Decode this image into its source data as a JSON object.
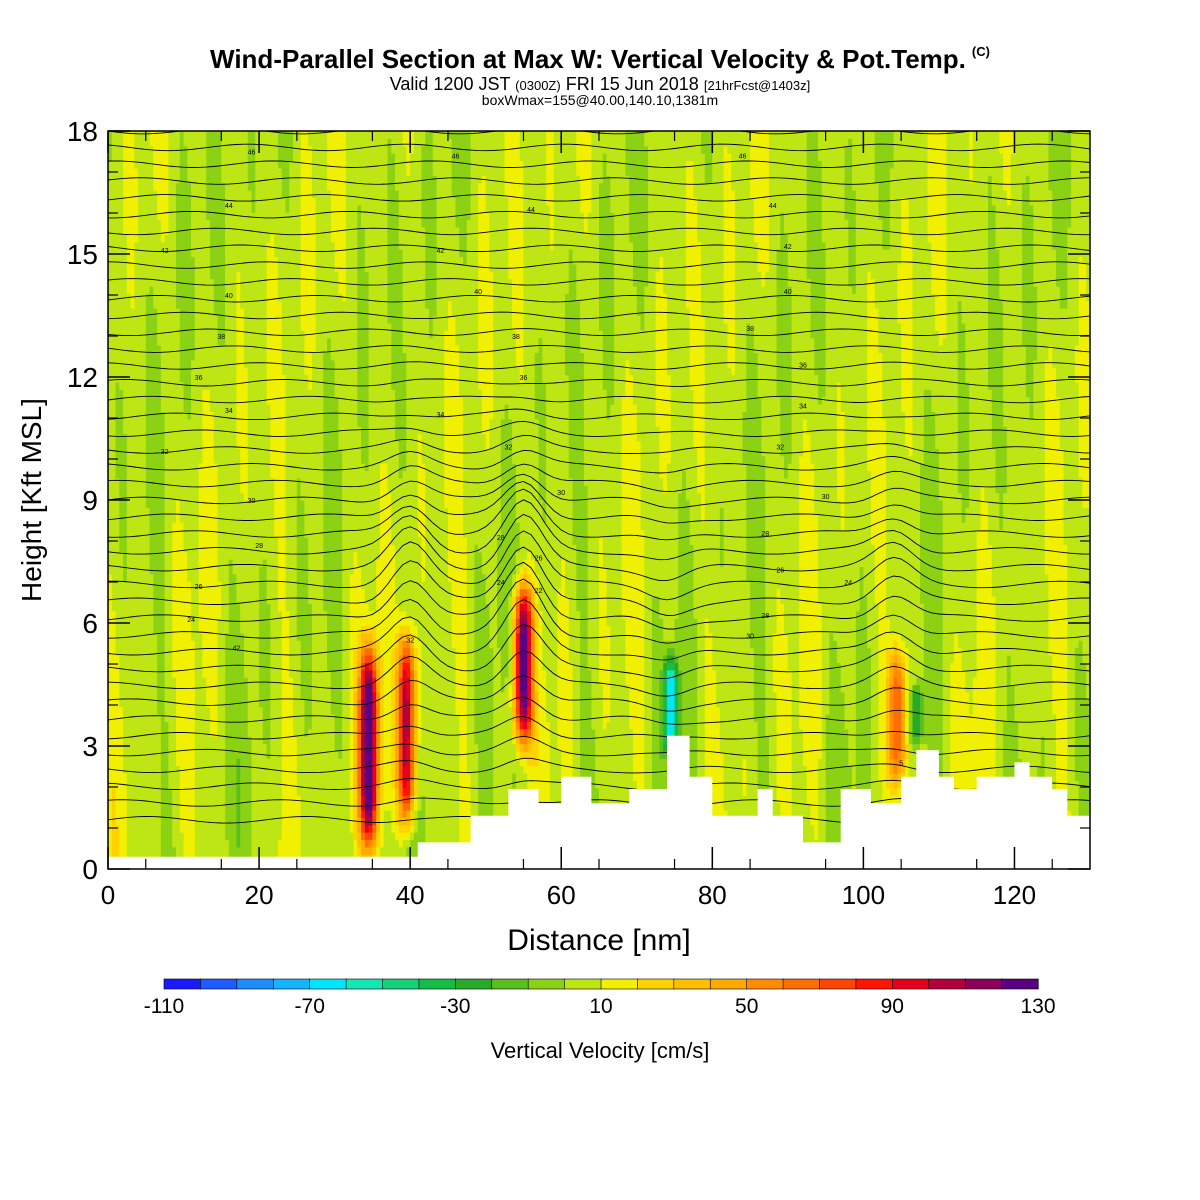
{
  "header": {
    "title": "Wind-Parallel Section at Max W: Vertical Velocity & Pot.Temp.",
    "copyright": "(C)",
    "valid_prefix": "Valid 1200 JST",
    "valid_utc": "(0300Z)",
    "valid_date": "FRI 15 Jun 2018",
    "forecast": "[21hrFcst@1403z]",
    "box_info": "boxWmax=155@40.00,140.10,1381m"
  },
  "chart_data": {
    "type": "heatmap",
    "xlabel": "Distance [nm]",
    "ylabel": "Height [Kft MSL]",
    "xlim": [
      0,
      130
    ],
    "ylim": [
      0,
      18
    ],
    "x_ticks": [
      0,
      20,
      40,
      60,
      80,
      100,
      120
    ],
    "y_ticks": [
      0,
      3,
      6,
      9,
      12,
      15,
      18
    ],
    "colorbar": {
      "label": "Vertical Velocity [cm/s]",
      "min": -110,
      "max": 130,
      "step": 10,
      "tick_labels": [
        -110,
        -70,
        -30,
        10,
        50,
        90,
        130
      ],
      "colors": [
        "#1a1aff",
        "#1f5cff",
        "#1f8cff",
        "#14b4ff",
        "#00e6ff",
        "#14e6b4",
        "#14d278",
        "#14be46",
        "#28aa28",
        "#5abe1e",
        "#8cd214",
        "#bee614",
        "#f0f000",
        "#ffd200",
        "#ffbe00",
        "#ffaa00",
        "#ff8c00",
        "#ff6e00",
        "#ff4600",
        "#ff1400",
        "#e6001e",
        "#b4003c",
        "#8c005a",
        "#5a0082"
      ]
    },
    "background_w": 5,
    "updrafts": [
      {
        "x": 34.5,
        "y_base": 0.5,
        "y_top": 5.5,
        "w_max": 130
      },
      {
        "x": 39.5,
        "y_base": 1.0,
        "y_top": 5.8,
        "w_max": 110
      },
      {
        "x": 55.0,
        "y_base": 3.0,
        "y_top": 7.0,
        "w_max": 125
      },
      {
        "x": 104.5,
        "y_base": 2.0,
        "y_top": 5.5,
        "w_max": 65
      }
    ],
    "downdrafts": [
      {
        "x": 74.5,
        "y_base": 2.8,
        "y_top": 5.2,
        "w_min": -70
      },
      {
        "x": 107.0,
        "y_base": 3.0,
        "y_top": 4.5,
        "w_min": -35
      }
    ],
    "terrain_top": [
      [
        0,
        0.3
      ],
      [
        41,
        0.3
      ],
      [
        41,
        0.65
      ],
      [
        48,
        0.65
      ],
      [
        48,
        1.3
      ],
      [
        53,
        1.3
      ],
      [
        53,
        1.95
      ],
      [
        57,
        1.95
      ],
      [
        57,
        1.6
      ],
      [
        60,
        1.6
      ],
      [
        60,
        2.25
      ],
      [
        64,
        2.25
      ],
      [
        64,
        1.6
      ],
      [
        69,
        1.6
      ],
      [
        69,
        1.95
      ],
      [
        74,
        1.95
      ],
      [
        74,
        3.25
      ],
      [
        77,
        3.25
      ],
      [
        77,
        2.25
      ],
      [
        80,
        2.25
      ],
      [
        80,
        1.3
      ],
      [
        86,
        1.3
      ],
      [
        86,
        1.95
      ],
      [
        88,
        1.95
      ],
      [
        88,
        1.3
      ],
      [
        92,
        1.3
      ],
      [
        92,
        0.65
      ],
      [
        97,
        0.65
      ],
      [
        97,
        1.95
      ],
      [
        101,
        1.95
      ],
      [
        101,
        1.6
      ],
      [
        105,
        1.6
      ],
      [
        105,
        2.25
      ],
      [
        107,
        2.25
      ],
      [
        107,
        2.9
      ],
      [
        110,
        2.9
      ],
      [
        110,
        2.25
      ],
      [
        112,
        2.25
      ],
      [
        112,
        1.95
      ],
      [
        115,
        1.95
      ],
      [
        115,
        2.25
      ],
      [
        120,
        2.25
      ],
      [
        120,
        2.6
      ],
      [
        122,
        2.6
      ],
      [
        122,
        2.25
      ],
      [
        125,
        2.25
      ],
      [
        125,
        1.95
      ],
      [
        127,
        1.95
      ],
      [
        127,
        1.3
      ],
      [
        130,
        1.3
      ]
    ],
    "theta_label_values": [
      24,
      26,
      28,
      30,
      32,
      34,
      36,
      38,
      40,
      42,
      44,
      46
    ],
    "theta_labels": [
      {
        "x": 11,
        "y": 6.1,
        "v": "24"
      },
      {
        "x": 17,
        "y": 5.4,
        "v": "42"
      },
      {
        "x": 12,
        "y": 6.9,
        "v": "26"
      },
      {
        "x": 20,
        "y": 7.9,
        "v": "28"
      },
      {
        "x": 19,
        "y": 9.0,
        "v": "30"
      },
      {
        "x": 7.5,
        "y": 10.2,
        "v": "32"
      },
      {
        "x": 16,
        "y": 11.2,
        "v": "34"
      },
      {
        "x": 12,
        "y": 12.0,
        "v": "36"
      },
      {
        "x": 15,
        "y": 13.0,
        "v": "38"
      },
      {
        "x": 16,
        "y": 14.0,
        "v": "40"
      },
      {
        "x": 7.5,
        "y": 15.1,
        "v": "42"
      },
      {
        "x": 16,
        "y": 16.2,
        "v": "44"
      },
      {
        "x": 19,
        "y": 17.5,
        "v": "46"
      },
      {
        "x": 40,
        "y": 5.6,
        "v": "32"
      },
      {
        "x": 46,
        "y": 17.4,
        "v": "46"
      },
      {
        "x": 56,
        "y": 16.1,
        "v": "44"
      },
      {
        "x": 44,
        "y": 15.1,
        "v": "42"
      },
      {
        "x": 49,
        "y": 14.1,
        "v": "40"
      },
      {
        "x": 54,
        "y": 13.0,
        "v": "38"
      },
      {
        "x": 55,
        "y": 12.0,
        "v": "36"
      },
      {
        "x": 44,
        "y": 11.1,
        "v": "34"
      },
      {
        "x": 53,
        "y": 10.3,
        "v": "32"
      },
      {
        "x": 60,
        "y": 9.2,
        "v": "30"
      },
      {
        "x": 52,
        "y": 8.1,
        "v": "28"
      },
      {
        "x": 57,
        "y": 7.6,
        "v": "26"
      },
      {
        "x": 52,
        "y": 7.0,
        "v": "24"
      },
      {
        "x": 57,
        "y": 6.8,
        "v": "22"
      },
      {
        "x": 84,
        "y": 17.4,
        "v": "46"
      },
      {
        "x": 88,
        "y": 16.2,
        "v": "44"
      },
      {
        "x": 90,
        "y": 15.2,
        "v": "42"
      },
      {
        "x": 90,
        "y": 14.1,
        "v": "40"
      },
      {
        "x": 85,
        "y": 13.2,
        "v": "38"
      },
      {
        "x": 92,
        "y": 12.3,
        "v": "36"
      },
      {
        "x": 92,
        "y": 11.3,
        "v": "34"
      },
      {
        "x": 89,
        "y": 10.3,
        "v": "32"
      },
      {
        "x": 95,
        "y": 9.1,
        "v": "30"
      },
      {
        "x": 87,
        "y": 8.2,
        "v": "28"
      },
      {
        "x": 89,
        "y": 7.3,
        "v": "26"
      },
      {
        "x": 98,
        "y": 7.0,
        "v": "24"
      },
      {
        "x": 87,
        "y": 6.2,
        "v": "28"
      },
      {
        "x": 85,
        "y": 5.7,
        "v": "30"
      },
      {
        "x": 105,
        "y": 2.6,
        "v": "5"
      }
    ]
  }
}
